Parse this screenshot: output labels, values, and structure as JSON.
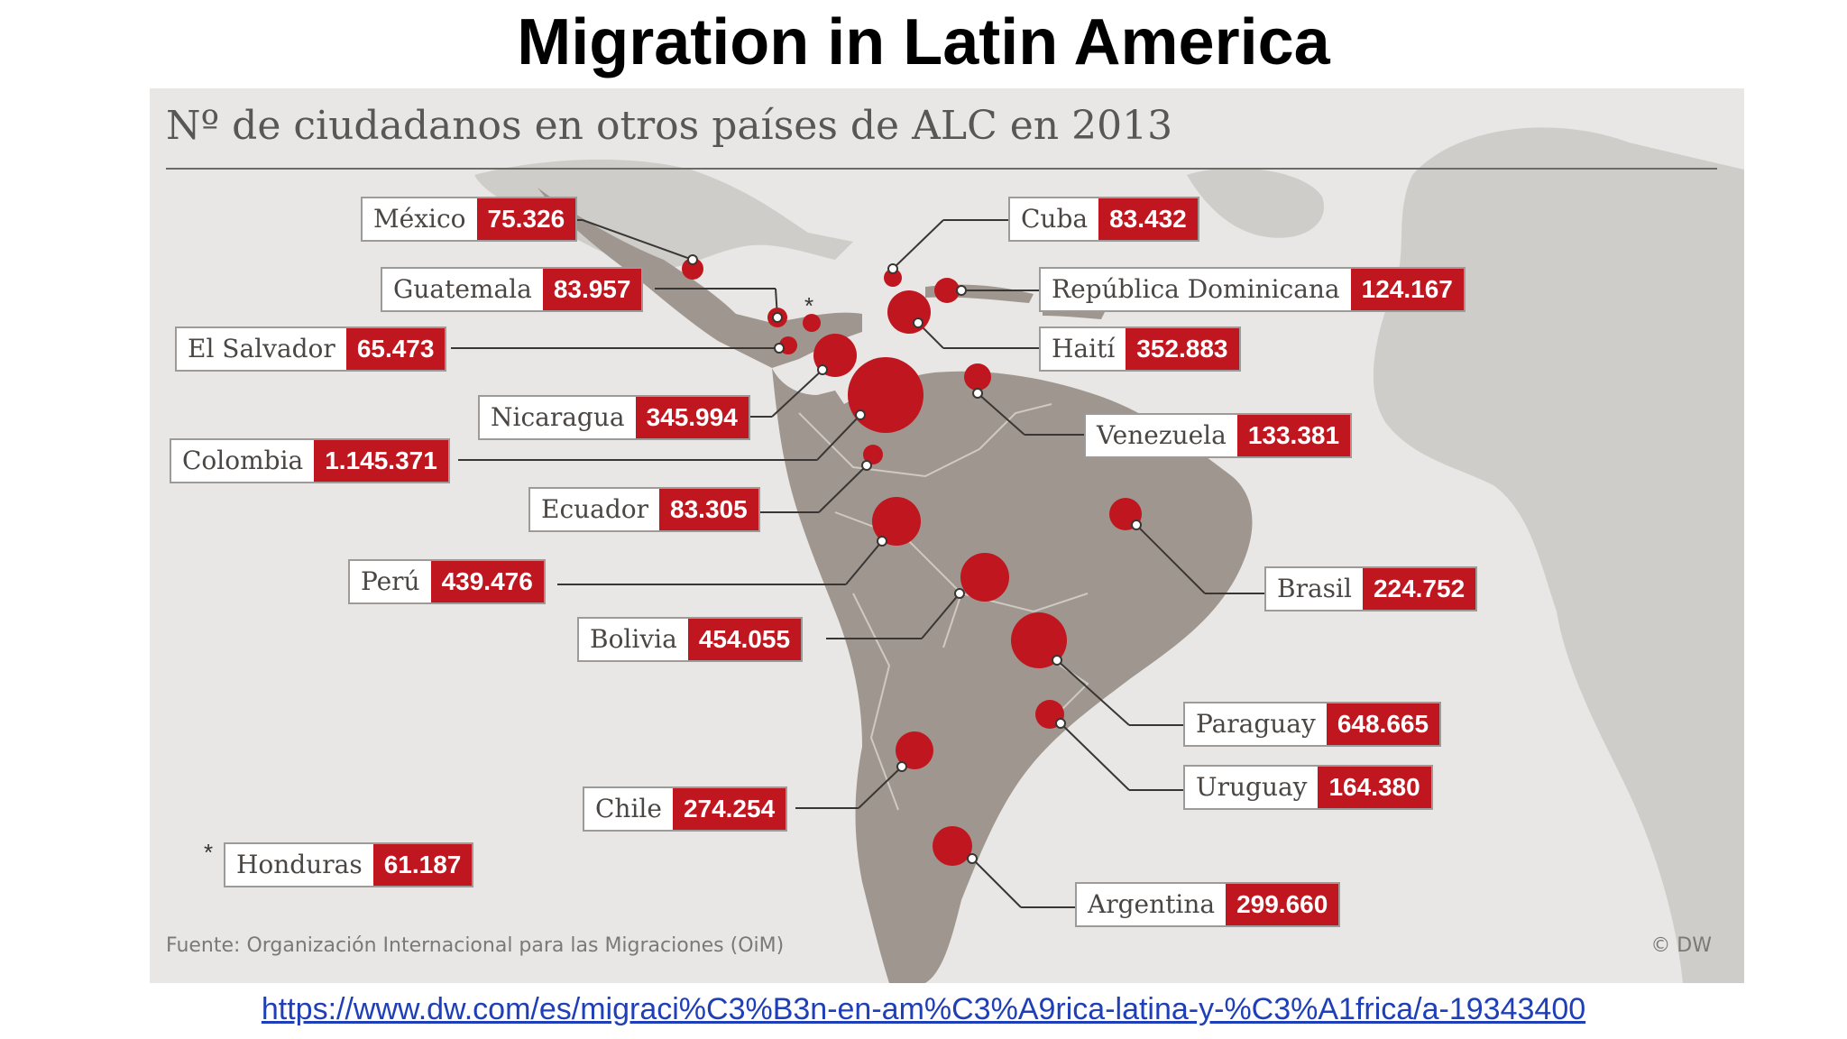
{
  "slide": {
    "title": "Migration in Latin America",
    "link_text": "https://www.dw.com/es/migraci%C3%B3n-en-am%C3%A9rica-latina-y-%C3%A1frica/a-19343400"
  },
  "infographic": {
    "title": "Nº de ciudadanos en otros países de ALC en 2013",
    "source": "Fuente: Organización Internacional para las Migraciones (OiM)",
    "credit": "© DW",
    "footnote_marker": "*"
  },
  "colors": {
    "accent_red": "#c0161f",
    "land": "#9f978f",
    "ocean": "#e8e7e5",
    "other_land": "#cfcdca"
  },
  "countries": [
    {
      "name": "México",
      "value": "75.326"
    },
    {
      "name": "Guatemala",
      "value": "83.957"
    },
    {
      "name": "El Salvador",
      "value": "65.473"
    },
    {
      "name": "Nicaragua",
      "value": "345.994"
    },
    {
      "name": "Colombia",
      "value": "1.145.371"
    },
    {
      "name": "Ecuador",
      "value": "83.305"
    },
    {
      "name": "Perú",
      "value": "439.476"
    },
    {
      "name": "Bolivia",
      "value": "454.055"
    },
    {
      "name": "Chile",
      "value": "274.254"
    },
    {
      "name": "Honduras",
      "value": "61.187"
    },
    {
      "name": "Cuba",
      "value": "83.432"
    },
    {
      "name": "República Dominicana",
      "value": "124.167"
    },
    {
      "name": "Haití",
      "value": "352.883"
    },
    {
      "name": "Venezuela",
      "value": "133.381"
    },
    {
      "name": "Brasil",
      "value": "224.752"
    },
    {
      "name": "Paraguay",
      "value": "648.665"
    },
    {
      "name": "Uruguay",
      "value": "164.380"
    },
    {
      "name": "Argentina",
      "value": "299.660"
    }
  ]
}
